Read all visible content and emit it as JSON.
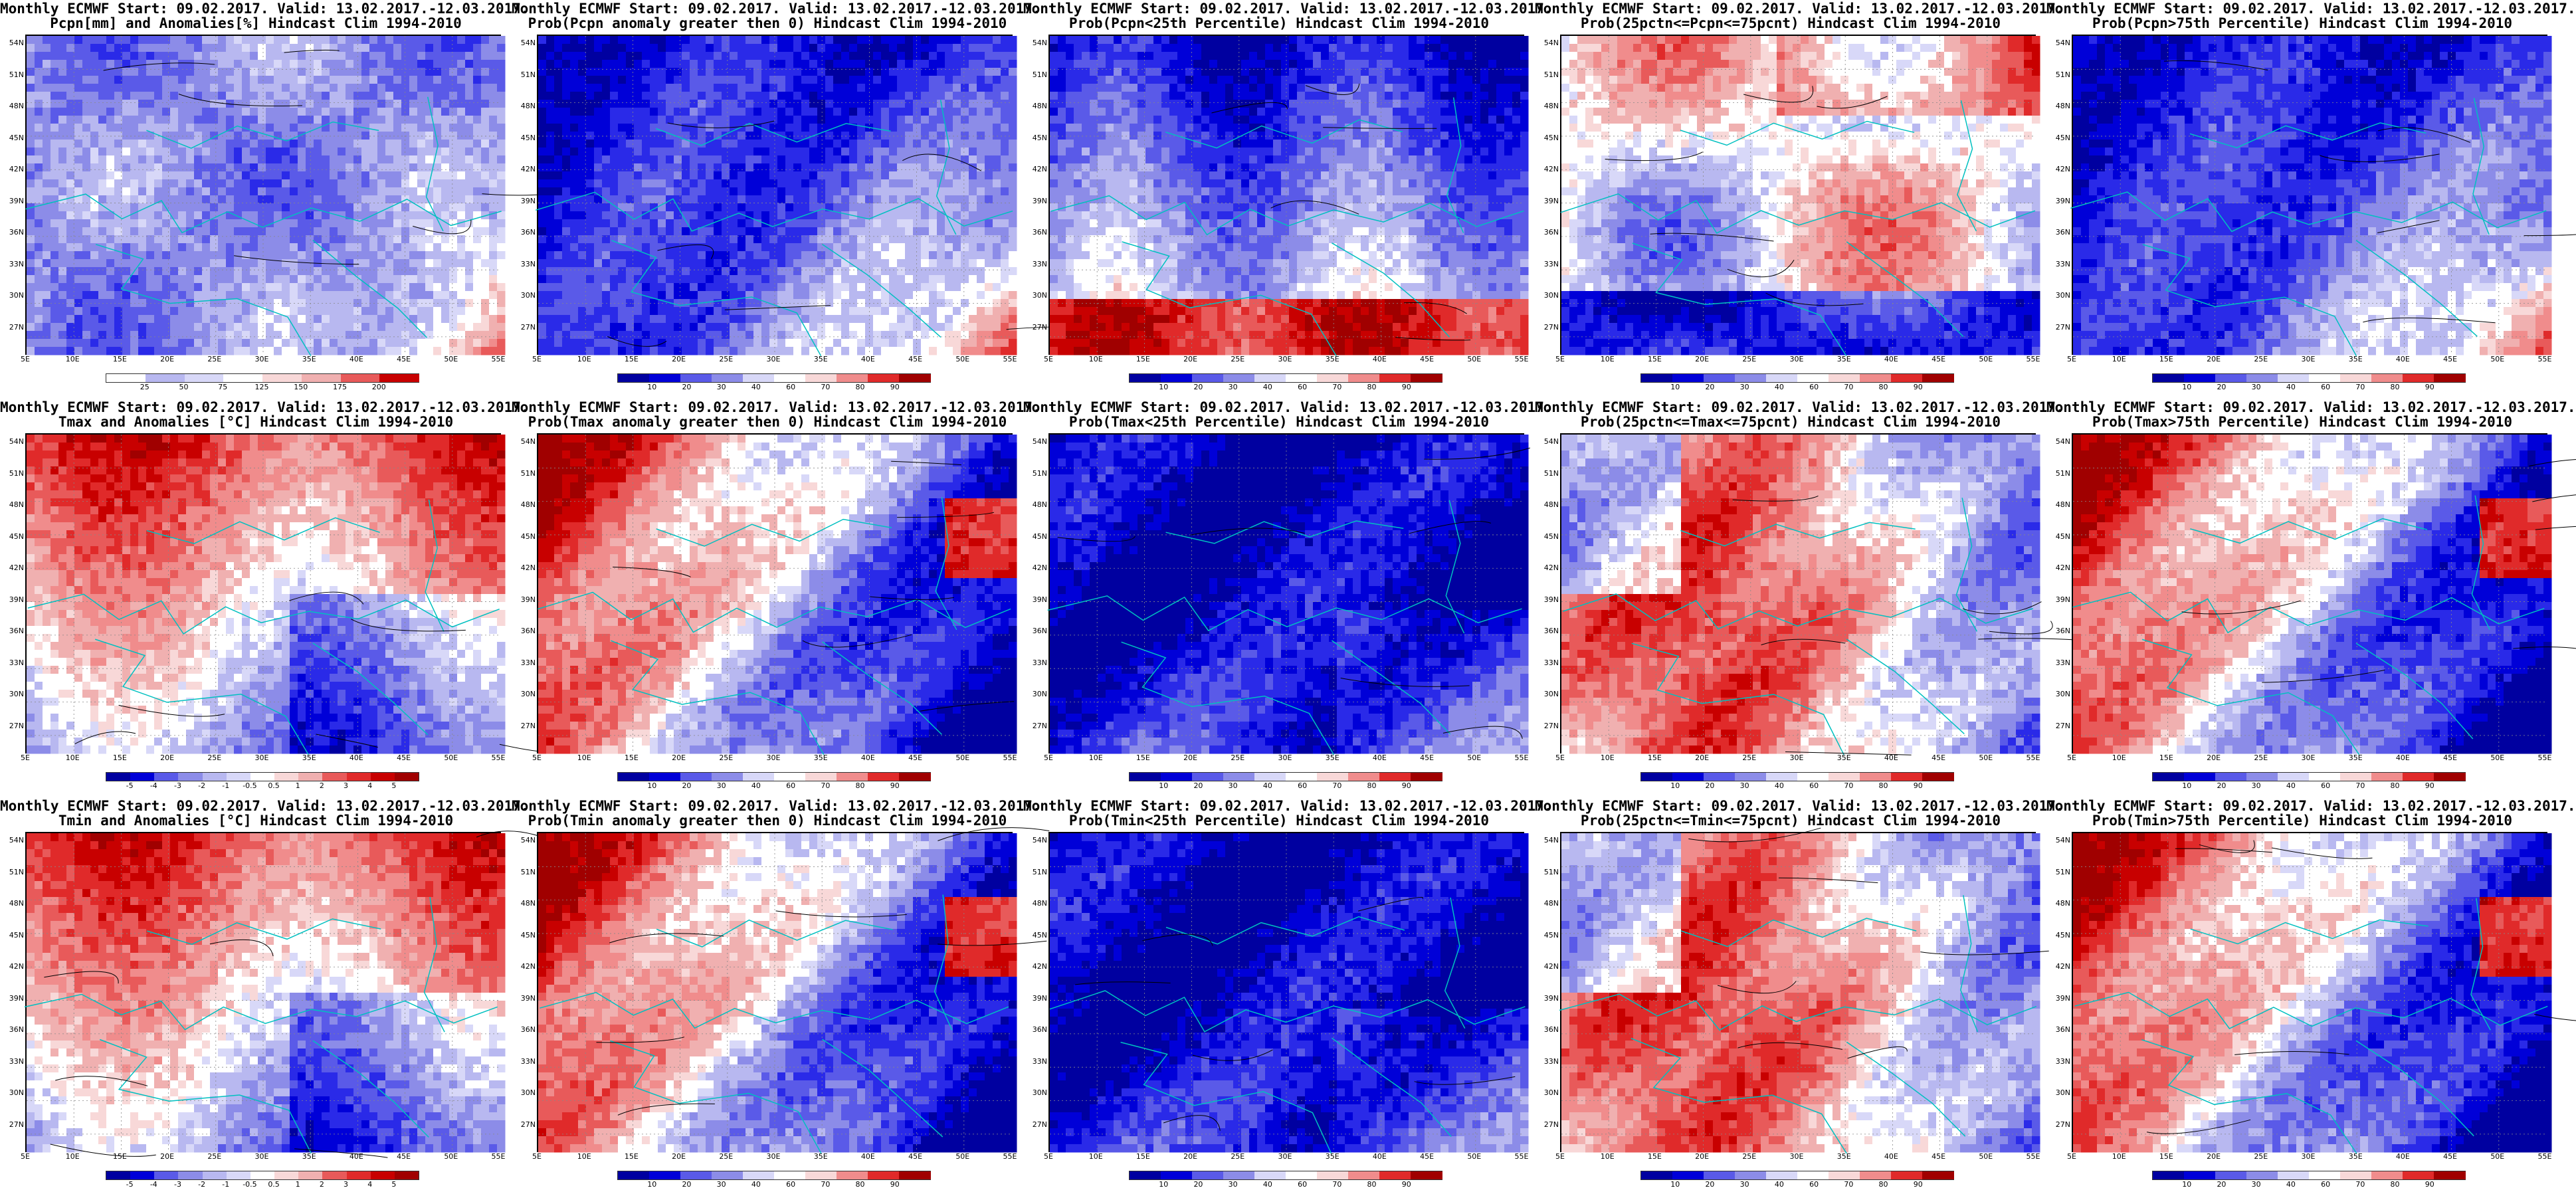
{
  "panels": [
    {
      "title1": "Monthly ECMWF Start: 09.02.2017. Valid: 13.02.2017.-12.03.2017.",
      "title2": "Pcpn[mm] and Anomalies[%] Hindcast Clim 1994-2010",
      "pattern": "pcpn-anom",
      "colorbar": "pcpn",
      "ticks": [
        "25",
        "50",
        "75",
        "125",
        "150",
        "175",
        "200"
      ]
    },
    {
      "title1": "Monthly ECMWF Start: 09.02.2017. Valid: 13.02.2017.-12.03.2017.",
      "title2": "Prob(Pcpn anomaly greater then 0) Hindcast Clim 1994-2010",
      "pattern": "cold-west-warm-se",
      "colorbar": "prob",
      "ticks": [
        "10",
        "20",
        "30",
        "40",
        "60",
        "70",
        "80",
        "90"
      ]
    },
    {
      "title1": "Monthly ECMWF Start: 09.02.2017. Valid: 13.02.2017.-12.03.2017.",
      "title2": "Prob(Pcpn<25th Percentile) Hindcast Clim 1994-2010",
      "pattern": "cold-north-warm-south",
      "colorbar": "prob",
      "ticks": [
        "10",
        "20",
        "30",
        "40",
        "60",
        "70",
        "80",
        "90"
      ]
    },
    {
      "title1": "Monthly ECMWF Start: 09.02.2017. Valid: 13.02.2017.-12.03.2017.",
      "title2": "Prob(25pctn<=Pcpn<=75pcnt) Hindcast Clim 1994-2010",
      "pattern": "mixed-pale",
      "colorbar": "prob",
      "ticks": [
        "10",
        "20",
        "30",
        "40",
        "60",
        "70",
        "80",
        "90"
      ]
    },
    {
      "title1": "Monthly ECMWF Start: 09.02.2017. Valid: 13.02.2017.-12.03.2017.",
      "title2": "Prob(Pcpn>75th Percentile) Hindcast Clim 1994-2010",
      "pattern": "cold-west-warm-se",
      "colorbar": "prob",
      "ticks": [
        "10",
        "20",
        "30",
        "40",
        "60",
        "70",
        "80",
        "90"
      ]
    },
    {
      "title1": "Monthly ECMWF Start: 09.02.2017. Valid: 13.02.2017.-12.03.2017.",
      "title2": "Tmax and Anomalies [°C] Hindcast Clim 1994-2010",
      "pattern": "warm-north-cool-south",
      "colorbar": "temp",
      "ticks": [
        "-5",
        "-4",
        "-3",
        "-2",
        "-1",
        "-0.5",
        "0.5",
        "1",
        "2",
        "3",
        "4",
        "5"
      ]
    },
    {
      "title1": "Monthly ECMWF Start: 09.02.2017. Valid: 13.02.2017.-12.03.2017.",
      "title2": "Prob(Tmax anomaly greater then 0) Hindcast Clim 1994-2010",
      "pattern": "warm-west-cold-east",
      "colorbar": "prob",
      "ticks": [
        "10",
        "20",
        "30",
        "40",
        "60",
        "70",
        "80",
        "90"
      ]
    },
    {
      "title1": "Monthly ECMWF Start: 09.02.2017. Valid: 13.02.2017.-12.03.2017.",
      "title2": "Prob(Tmax<25th Percentile) Hindcast Clim 1994-2010",
      "pattern": "cold-all",
      "colorbar": "prob",
      "ticks": [
        "10",
        "20",
        "30",
        "40",
        "60",
        "70",
        "80",
        "90"
      ]
    },
    {
      "title1": "Monthly ECMWF Start: 09.02.2017. Valid: 13.02.2017.-12.03.2017.",
      "title2": "Prob(25pctn<=Tmax<=75pcnt) Hindcast Clim 1994-2010",
      "pattern": "warm-diag",
      "colorbar": "prob",
      "ticks": [
        "10",
        "20",
        "30",
        "40",
        "60",
        "70",
        "80",
        "90"
      ]
    },
    {
      "title1": "Monthly ECMWF Start: 09.02.2017. Valid: 13.02.2017.-12.03.2017.",
      "title2": "Prob(Tmax>75th Percentile) Hindcast Clim 1994-2010",
      "pattern": "warm-west-cold-east",
      "colorbar": "prob",
      "ticks": [
        "10",
        "20",
        "30",
        "40",
        "60",
        "70",
        "80",
        "90"
      ]
    },
    {
      "title1": "Monthly ECMWF Start: 09.02.2017. Valid: 13.02.2017.-12.03.2017.",
      "title2": "Tmin and Anomalies [°C] Hindcast Clim 1994-2010",
      "pattern": "warm-north-cool-south",
      "colorbar": "temp",
      "ticks": [
        "-5",
        "-4",
        "-3",
        "-2",
        "-1",
        "-0.5",
        "0.5",
        "1",
        "2",
        "3",
        "4",
        "5"
      ]
    },
    {
      "title1": "Monthly ECMWF Start: 09.02.2017. Valid: 13.02.2017.-12.03.2017.",
      "title2": "Prob(Tmin anomaly greater then 0) Hindcast Clim 1994-2010",
      "pattern": "warm-west-cold-east",
      "colorbar": "prob",
      "ticks": [
        "10",
        "20",
        "30",
        "40",
        "60",
        "70",
        "80",
        "90"
      ]
    },
    {
      "title1": "Monthly ECMWF Start: 09.02.2017. Valid: 13.02.2017.-12.03.2017.",
      "title2": "Prob(Tmin<25th Percentile) Hindcast Clim 1994-2010",
      "pattern": "cold-all",
      "colorbar": "prob",
      "ticks": [
        "10",
        "20",
        "30",
        "40",
        "60",
        "70",
        "80",
        "90"
      ]
    },
    {
      "title1": "Monthly ECMWF Start: 09.02.2017. Valid: 13.02.2017.-12.03.2017.",
      "title2": "Prob(25pctn<=Tmin<=75pcnt) Hindcast Clim 1994-2010",
      "pattern": "warm-diag",
      "colorbar": "prob",
      "ticks": [
        "10",
        "20",
        "30",
        "40",
        "60",
        "70",
        "80",
        "90"
      ]
    },
    {
      "title1": "Monthly ECMWF Start: 09.02.2017. Valid: 13.02.2017.-12.03.2017.",
      "title2": "Prob(Tmin>75th Percentile) Hindcast Clim 1994-2010",
      "pattern": "warm-west-cold-east",
      "colorbar": "prob",
      "ticks": [
        "10",
        "20",
        "30",
        "40",
        "60",
        "70",
        "80",
        "90"
      ]
    }
  ],
  "lat_labels": [
    "54N",
    "51N",
    "48N",
    "45N",
    "42N",
    "39N",
    "36N",
    "33N",
    "30N",
    "27N"
  ],
  "lon_labels": [
    "5E",
    "10E",
    "15E",
    "20E",
    "25E",
    "30E",
    "35E",
    "40E",
    "45E",
    "50E",
    "55E"
  ],
  "colors": {
    "blue_scale": [
      "#0000a0",
      "#0000d8",
      "#2a2ae8",
      "#5a5ae8",
      "#8c8ce8",
      "#b8b8f0",
      "#d8d8f8"
    ],
    "red_scale": [
      "#f8d8d8",
      "#f0b0b0",
      "#f08c8c",
      "#e85a5a",
      "#e02a2a",
      "#c80000",
      "#a00000"
    ],
    "coast": "#00c0c0",
    "contour": "#000000"
  }
}
